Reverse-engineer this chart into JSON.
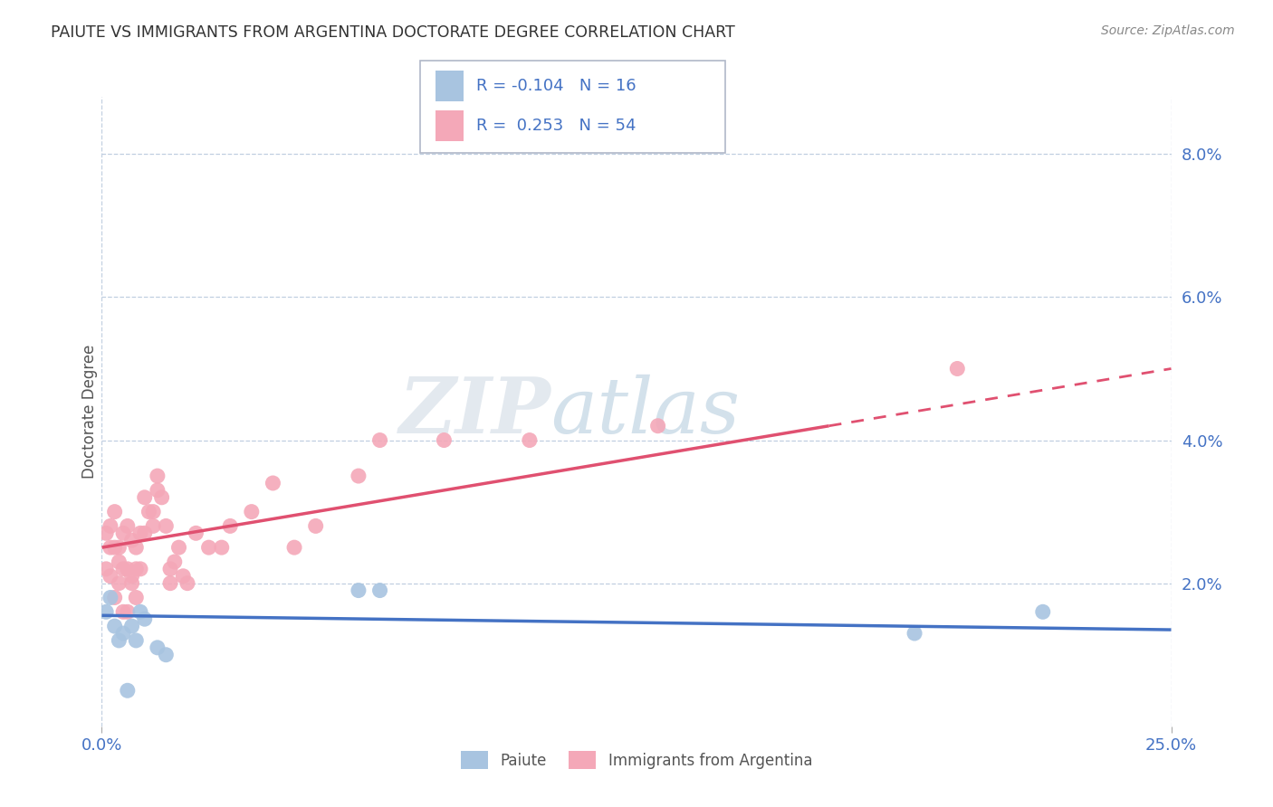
{
  "title": "PAIUTE VS IMMIGRANTS FROM ARGENTINA DOCTORATE DEGREE CORRELATION CHART",
  "source": "Source: ZipAtlas.com",
  "ylabel": "Doctorate Degree",
  "xlim": [
    0.0,
    0.25
  ],
  "ylim": [
    0.0,
    0.088
  ],
  "yticks": [
    0.02,
    0.04,
    0.06,
    0.08
  ],
  "ytick_labels": [
    "2.0%",
    "4.0%",
    "6.0%",
    "8.0%"
  ],
  "xticks": [
    0.0,
    0.25
  ],
  "xtick_labels": [
    "0.0%",
    "25.0%"
  ],
  "legend_labels": [
    "Paiute",
    "Immigrants from Argentina"
  ],
  "R_paiute": -0.104,
  "N_paiute": 16,
  "R_argentina": 0.253,
  "N_argentina": 54,
  "color_paiute": "#a8c4e0",
  "color_argentina": "#f4a8b8",
  "line_color_paiute": "#4472c4",
  "line_color_argentina": "#e05070",
  "background_color": "#ffffff",
  "watermark_zip": "ZIP",
  "watermark_atlas": "atlas",
  "paiute_x": [
    0.001,
    0.002,
    0.003,
    0.004,
    0.005,
    0.006,
    0.007,
    0.008,
    0.009,
    0.01,
    0.013,
    0.015,
    0.06,
    0.065,
    0.19,
    0.22
  ],
  "paiute_y": [
    0.016,
    0.018,
    0.014,
    0.012,
    0.013,
    0.005,
    0.014,
    0.012,
    0.016,
    0.015,
    0.011,
    0.01,
    0.019,
    0.019,
    0.013,
    0.016
  ],
  "argentina_x": [
    0.001,
    0.001,
    0.002,
    0.002,
    0.002,
    0.003,
    0.003,
    0.003,
    0.004,
    0.004,
    0.004,
    0.005,
    0.005,
    0.005,
    0.006,
    0.006,
    0.006,
    0.007,
    0.007,
    0.007,
    0.008,
    0.008,
    0.008,
    0.009,
    0.009,
    0.01,
    0.01,
    0.011,
    0.012,
    0.012,
    0.013,
    0.013,
    0.014,
    0.015,
    0.016,
    0.016,
    0.017,
    0.018,
    0.019,
    0.02,
    0.022,
    0.025,
    0.028,
    0.03,
    0.035,
    0.04,
    0.045,
    0.05,
    0.06,
    0.065,
    0.08,
    0.1,
    0.13,
    0.2
  ],
  "argentina_y": [
    0.027,
    0.022,
    0.028,
    0.025,
    0.021,
    0.03,
    0.018,
    0.025,
    0.02,
    0.025,
    0.023,
    0.016,
    0.027,
    0.022,
    0.028,
    0.016,
    0.022,
    0.021,
    0.026,
    0.02,
    0.025,
    0.022,
    0.018,
    0.022,
    0.027,
    0.027,
    0.032,
    0.03,
    0.03,
    0.028,
    0.035,
    0.033,
    0.032,
    0.028,
    0.022,
    0.02,
    0.023,
    0.025,
    0.021,
    0.02,
    0.027,
    0.025,
    0.025,
    0.028,
    0.03,
    0.034,
    0.025,
    0.028,
    0.035,
    0.04,
    0.04,
    0.04,
    0.042,
    0.05
  ]
}
